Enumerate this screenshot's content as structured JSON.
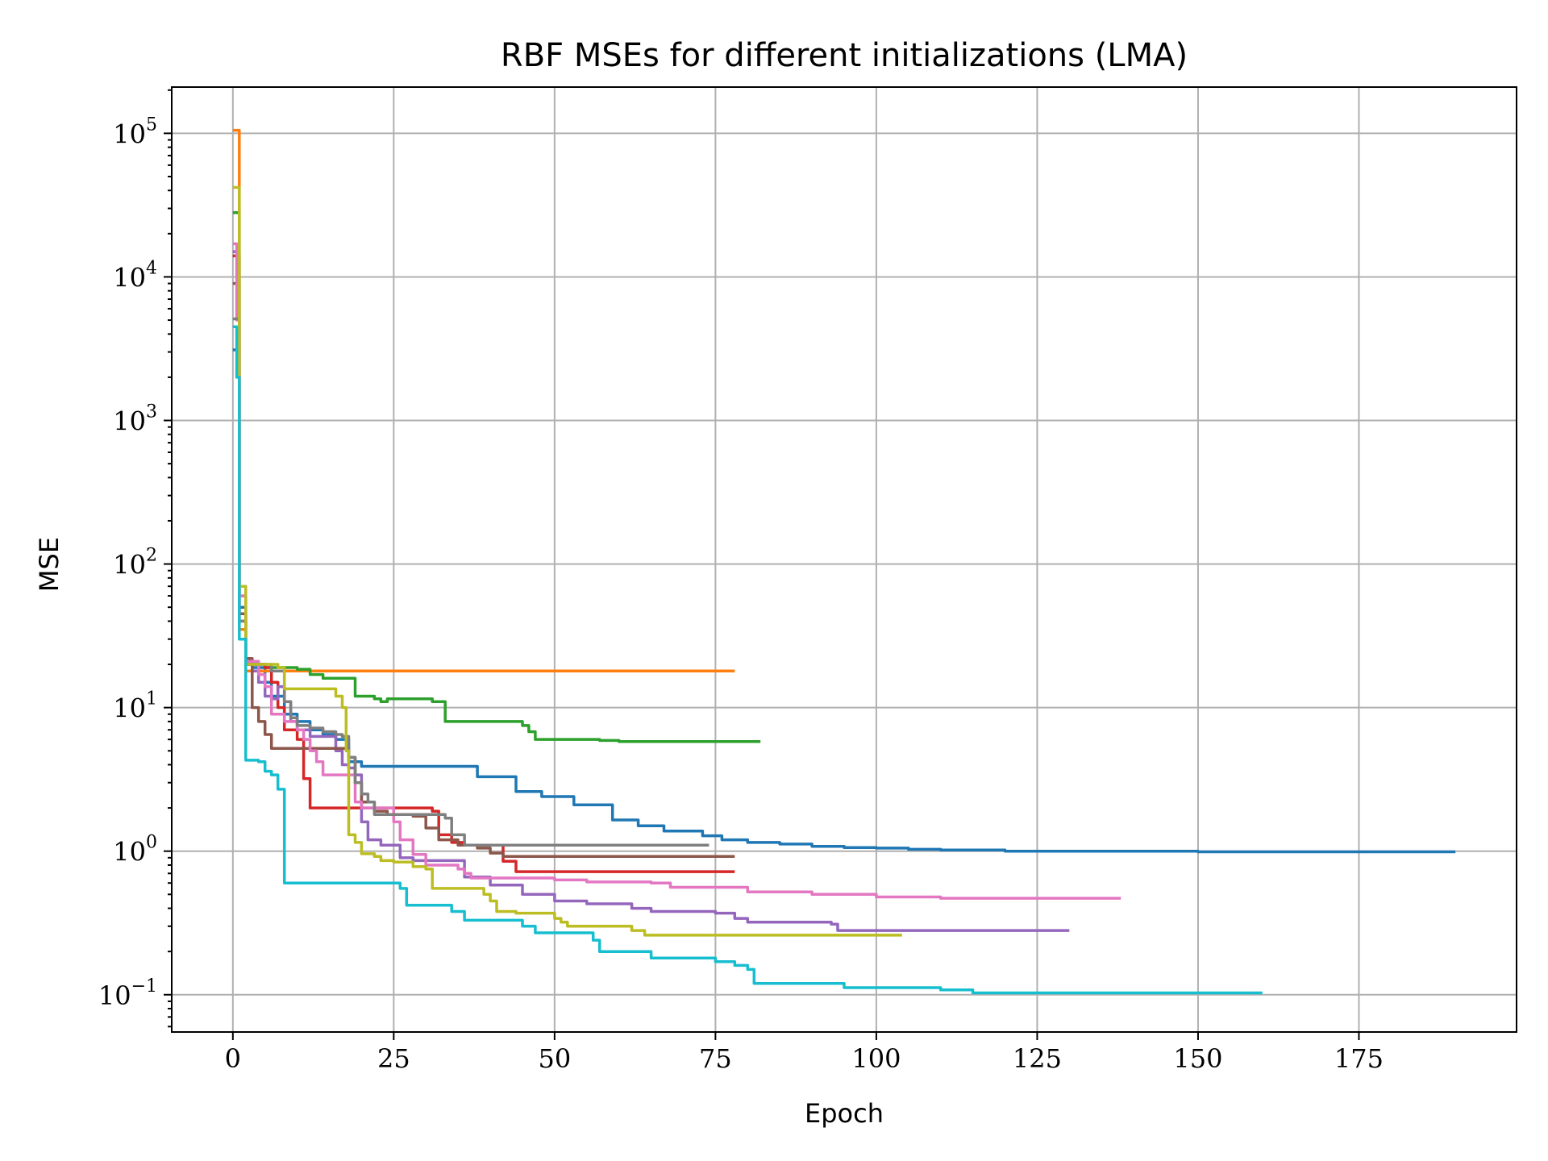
{
  "chart_data": {
    "type": "line",
    "title": "RBF MSEs for different initializations (LMA)",
    "xlabel": "Epoch",
    "ylabel": "MSE",
    "yscale": "log",
    "xlim": [
      -9.5,
      199.5
    ],
    "ylim": [
      0.055,
      210000
    ],
    "xticks": [
      0,
      25,
      50,
      75,
      100,
      125,
      150,
      175
    ],
    "yticks": [
      0.1,
      1,
      10,
      100,
      1000,
      10000,
      100000
    ],
    "ytick_labels": [
      {
        "base": "10",
        "exp": "−1"
      },
      {
        "base": "10",
        "exp": "0"
      },
      {
        "base": "10",
        "exp": "1"
      },
      {
        "base": "10",
        "exp": "2"
      },
      {
        "base": "10",
        "exp": "3"
      },
      {
        "base": "10",
        "exp": "4"
      },
      {
        "base": "10",
        "exp": "5"
      }
    ],
    "grid": true,
    "series": [
      {
        "color": "#1f77b4",
        "points": [
          [
            0,
            3100
          ],
          [
            1,
            50
          ],
          [
            2,
            20
          ],
          [
            3,
            19
          ],
          [
            5,
            15
          ],
          [
            6,
            12
          ],
          [
            8,
            9
          ],
          [
            10,
            8
          ],
          [
            12,
            7
          ],
          [
            14,
            6.5
          ],
          [
            16,
            6
          ],
          [
            18,
            4.2
          ],
          [
            20,
            3.9
          ],
          [
            30,
            3.9
          ],
          [
            37,
            3.9
          ],
          [
            38,
            3.3
          ],
          [
            42,
            3.3
          ],
          [
            44,
            2.6
          ],
          [
            48,
            2.4
          ],
          [
            52,
            2.4
          ],
          [
            53,
            2.1
          ],
          [
            57,
            2.1
          ],
          [
            59,
            1.65
          ],
          [
            62,
            1.65
          ],
          [
            63,
            1.5
          ],
          [
            66,
            1.5
          ],
          [
            67,
            1.38
          ],
          [
            71,
            1.38
          ],
          [
            73,
            1.28
          ],
          [
            76,
            1.2
          ],
          [
            80,
            1.15
          ],
          [
            85,
            1.12
          ],
          [
            90,
            1.08
          ],
          [
            95,
            1.06
          ],
          [
            100,
            1.05
          ],
          [
            105,
            1.03
          ],
          [
            110,
            1.02
          ],
          [
            120,
            1.0
          ],
          [
            150,
            0.99
          ],
          [
            190,
            0.99
          ]
        ]
      },
      {
        "color": "#ff7f0e",
        "points": [
          [
            0,
            105000
          ],
          [
            1,
            35
          ],
          [
            2,
            18
          ],
          [
            10,
            18
          ],
          [
            78,
            18
          ]
        ]
      },
      {
        "color": "#2ca02c",
        "points": [
          [
            0,
            28000
          ],
          [
            1,
            60
          ],
          [
            2,
            20
          ],
          [
            5,
            19
          ],
          [
            10,
            18.5
          ],
          [
            12,
            17
          ],
          [
            14,
            16
          ],
          [
            18,
            16
          ],
          [
            19,
            12
          ],
          [
            21,
            12
          ],
          [
            22,
            11.5
          ],
          [
            23,
            11
          ],
          [
            24,
            11.5
          ],
          [
            30,
            11.5
          ],
          [
            31,
            11
          ],
          [
            33,
            8
          ],
          [
            37,
            8
          ],
          [
            44,
            8
          ],
          [
            45,
            7.5
          ],
          [
            46,
            6.8
          ],
          [
            47,
            6
          ],
          [
            56,
            6
          ],
          [
            57,
            5.9
          ],
          [
            60,
            5.8
          ],
          [
            82,
            5.8
          ]
        ]
      },
      {
        "color": "#d62728",
        "points": [
          [
            0,
            14000
          ],
          [
            1,
            40
          ],
          [
            2,
            20
          ],
          [
            4,
            20
          ],
          [
            5,
            19
          ],
          [
            6,
            15
          ],
          [
            7,
            10
          ],
          [
            8,
            7
          ],
          [
            10,
            6
          ],
          [
            11,
            3.2
          ],
          [
            12,
            2.0
          ],
          [
            17,
            2.0
          ],
          [
            30,
            2.0
          ],
          [
            31,
            1.9
          ],
          [
            32,
            1.3
          ],
          [
            33,
            1.3
          ],
          [
            34,
            1.15
          ],
          [
            36,
            1.1
          ],
          [
            41,
            1.1
          ],
          [
            42,
            0.85
          ],
          [
            43,
            0.85
          ],
          [
            44,
            0.72
          ],
          [
            78,
            0.72
          ]
        ]
      },
      {
        "color": "#9467bd",
        "points": [
          [
            0,
            15000
          ],
          [
            1,
            45
          ],
          [
            2,
            20
          ],
          [
            3,
            18
          ],
          [
            4,
            15
          ],
          [
            5,
            12
          ],
          [
            6,
            11.5
          ],
          [
            7,
            14
          ],
          [
            8,
            11
          ],
          [
            9,
            8
          ],
          [
            10,
            7
          ],
          [
            12,
            6.3
          ],
          [
            15,
            6.3
          ],
          [
            16,
            5
          ],
          [
            17,
            4
          ],
          [
            18,
            3.8
          ],
          [
            19,
            3.4
          ],
          [
            20,
            1.6
          ],
          [
            21,
            1.2
          ],
          [
            23,
            1.1
          ],
          [
            25,
            1.1
          ],
          [
            26,
            0.9
          ],
          [
            28,
            0.86
          ],
          [
            35,
            0.86
          ],
          [
            36,
            0.66
          ],
          [
            38,
            0.66
          ],
          [
            40,
            0.58
          ],
          [
            45,
            0.5
          ],
          [
            50,
            0.45
          ],
          [
            55,
            0.43
          ],
          [
            61,
            0.43
          ],
          [
            62,
            0.4
          ],
          [
            65,
            0.38
          ],
          [
            75,
            0.37
          ],
          [
            78,
            0.34
          ],
          [
            80,
            0.32
          ],
          [
            93,
            0.31
          ],
          [
            94,
            0.28
          ],
          [
            130,
            0.28
          ]
        ]
      },
      {
        "color": "#8c564b",
        "points": [
          [
            0,
            9000
          ],
          [
            1,
            45
          ],
          [
            2,
            22
          ],
          [
            3,
            10
          ],
          [
            4,
            8
          ],
          [
            5,
            6.5
          ],
          [
            6,
            5.2
          ],
          [
            17,
            5.2
          ],
          [
            18,
            4.5
          ],
          [
            19,
            3
          ],
          [
            20,
            2.2
          ],
          [
            22,
            1.9
          ],
          [
            24,
            1.8
          ],
          [
            28,
            1.75
          ],
          [
            30,
            1.45
          ],
          [
            32,
            1.2
          ],
          [
            35,
            1.1
          ],
          [
            38,
            1.05
          ],
          [
            40,
            0.97
          ],
          [
            42,
            0.92
          ],
          [
            78,
            0.92
          ]
        ]
      },
      {
        "color": "#e377c2",
        "points": [
          [
            0,
            17000
          ],
          [
            0.6,
            5000
          ],
          [
            1,
            60
          ],
          [
            2,
            21
          ],
          [
            3,
            21
          ],
          [
            4,
            17
          ],
          [
            5,
            14
          ],
          [
            6,
            9
          ],
          [
            8,
            8
          ],
          [
            10,
            7
          ],
          [
            11,
            6
          ],
          [
            12,
            5
          ],
          [
            13,
            4.2
          ],
          [
            14,
            3.4
          ],
          [
            18,
            3.4
          ],
          [
            19,
            2.2
          ],
          [
            20,
            2
          ],
          [
            24,
            2
          ],
          [
            25,
            1.6
          ],
          [
            26,
            1.2
          ],
          [
            28,
            0.95
          ],
          [
            30,
            0.8
          ],
          [
            35,
            0.75
          ],
          [
            36,
            0.7
          ],
          [
            37,
            0.65
          ],
          [
            40,
            0.65
          ],
          [
            50,
            0.63
          ],
          [
            55,
            0.61
          ],
          [
            65,
            0.6
          ],
          [
            68,
            0.56
          ],
          [
            75,
            0.56
          ],
          [
            80,
            0.52
          ],
          [
            90,
            0.5
          ],
          [
            100,
            0.48
          ],
          [
            110,
            0.47
          ],
          [
            138,
            0.47
          ]
        ]
      },
      {
        "color": "#7f7f7f",
        "points": [
          [
            0,
            5100
          ],
          [
            1,
            40
          ],
          [
            2,
            20
          ],
          [
            5,
            20
          ],
          [
            6,
            18
          ],
          [
            8,
            11
          ],
          [
            9,
            8.5
          ],
          [
            10,
            7.5
          ],
          [
            12,
            7.2
          ],
          [
            14,
            6.8
          ],
          [
            16,
            6.5
          ],
          [
            17,
            6.3
          ],
          [
            18,
            4.5
          ],
          [
            19,
            3
          ],
          [
            20,
            2.5
          ],
          [
            21,
            2.2
          ],
          [
            22,
            1.8
          ],
          [
            30,
            1.8
          ],
          [
            33,
            1.7
          ],
          [
            34,
            1.3
          ],
          [
            36,
            1.1
          ],
          [
            74,
            1.1
          ]
        ]
      },
      {
        "color": "#bcbd22",
        "points": [
          [
            0,
            42000
          ],
          [
            1,
            70
          ],
          [
            2,
            20
          ],
          [
            6,
            20
          ],
          [
            7,
            19
          ],
          [
            8,
            13.5
          ],
          [
            14,
            13.5
          ],
          [
            16,
            12
          ],
          [
            17,
            10
          ],
          [
            17.6,
            5
          ],
          [
            18,
            1.3
          ],
          [
            19,
            1.15
          ],
          [
            20,
            0.96
          ],
          [
            22,
            0.92
          ],
          [
            23,
            0.86
          ],
          [
            25,
            0.84
          ],
          [
            28,
            0.78
          ],
          [
            30,
            0.75
          ],
          [
            31,
            0.55
          ],
          [
            38,
            0.55
          ],
          [
            39,
            0.5
          ],
          [
            40,
            0.45
          ],
          [
            41,
            0.38
          ],
          [
            44,
            0.37
          ],
          [
            49,
            0.37
          ],
          [
            50,
            0.34
          ],
          [
            51,
            0.32
          ],
          [
            52,
            0.3
          ],
          [
            60,
            0.3
          ],
          [
            62,
            0.28
          ],
          [
            64,
            0.26
          ],
          [
            104,
            0.26
          ]
        ]
      },
      {
        "color": "#17becf",
        "points": [
          [
            0,
            4500
          ],
          [
            0.6,
            2000
          ],
          [
            1,
            30
          ],
          [
            2,
            4.3
          ],
          [
            4,
            4.2
          ],
          [
            5,
            3.6
          ],
          [
            6,
            3.4
          ],
          [
            7,
            2.7
          ],
          [
            8,
            0.6
          ],
          [
            15,
            0.6
          ],
          [
            25,
            0.6
          ],
          [
            26,
            0.55
          ],
          [
            27,
            0.42
          ],
          [
            33,
            0.42
          ],
          [
            34,
            0.38
          ],
          [
            36,
            0.33
          ],
          [
            42,
            0.33
          ],
          [
            45,
            0.3
          ],
          [
            47,
            0.27
          ],
          [
            55,
            0.27
          ],
          [
            56,
            0.24
          ],
          [
            57,
            0.2
          ],
          [
            60,
            0.2
          ],
          [
            65,
            0.18
          ],
          [
            70,
            0.18
          ],
          [
            75,
            0.17
          ],
          [
            78,
            0.16
          ],
          [
            80,
            0.15
          ],
          [
            81,
            0.12
          ],
          [
            85,
            0.12
          ],
          [
            94,
            0.12
          ],
          [
            95,
            0.112
          ],
          [
            105,
            0.112
          ],
          [
            110,
            0.108
          ],
          [
            115,
            0.103
          ],
          [
            160,
            0.103
          ]
        ]
      }
    ]
  }
}
